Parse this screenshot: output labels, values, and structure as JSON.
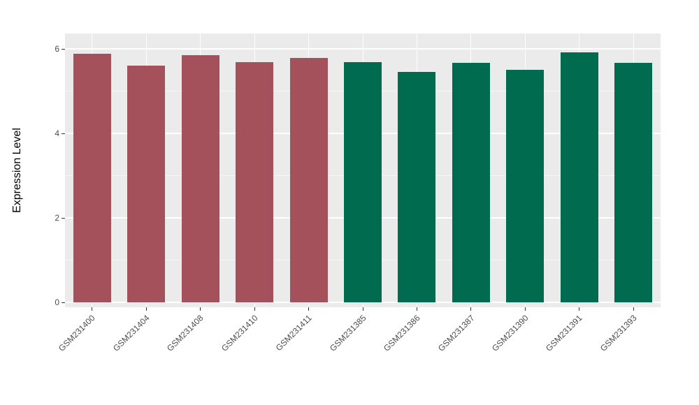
{
  "chart_data": {
    "type": "bar",
    "title": "",
    "xlabel": "",
    "ylabel": "Expression Level",
    "categories": [
      "GSM231400",
      "GSM231404",
      "GSM231408",
      "GSM231410",
      "GSM231411",
      "GSM231385",
      "GSM231386",
      "GSM231387",
      "GSM231390",
      "GSM231391",
      "GSM231393"
    ],
    "values": [
      5.88,
      5.6,
      5.85,
      5.68,
      5.78,
      5.68,
      5.45,
      5.67,
      5.5,
      5.92,
      5.67
    ],
    "bar_colors": [
      "#A5515B",
      "#A5515B",
      "#A5515B",
      "#A5515B",
      "#A5515B",
      "#006B4E",
      "#006B4E",
      "#006B4E",
      "#006B4E",
      "#006B4E",
      "#006B4E"
    ],
    "group_colors": {
      "left_group": "#A5515B",
      "right_group": "#006B4E"
    },
    "ytick_labels": [
      "0",
      "2",
      "4",
      "6"
    ],
    "yticks": [
      0,
      2,
      4,
      6
    ],
    "yminor": [
      1,
      3,
      5
    ],
    "ylim": [
      0,
      6.4
    ],
    "grid": true,
    "legend": "none",
    "panel_background": "#EBEBEB",
    "grid_color": "#FFFFFF",
    "tick_label_color": "#4D4D4D"
  }
}
